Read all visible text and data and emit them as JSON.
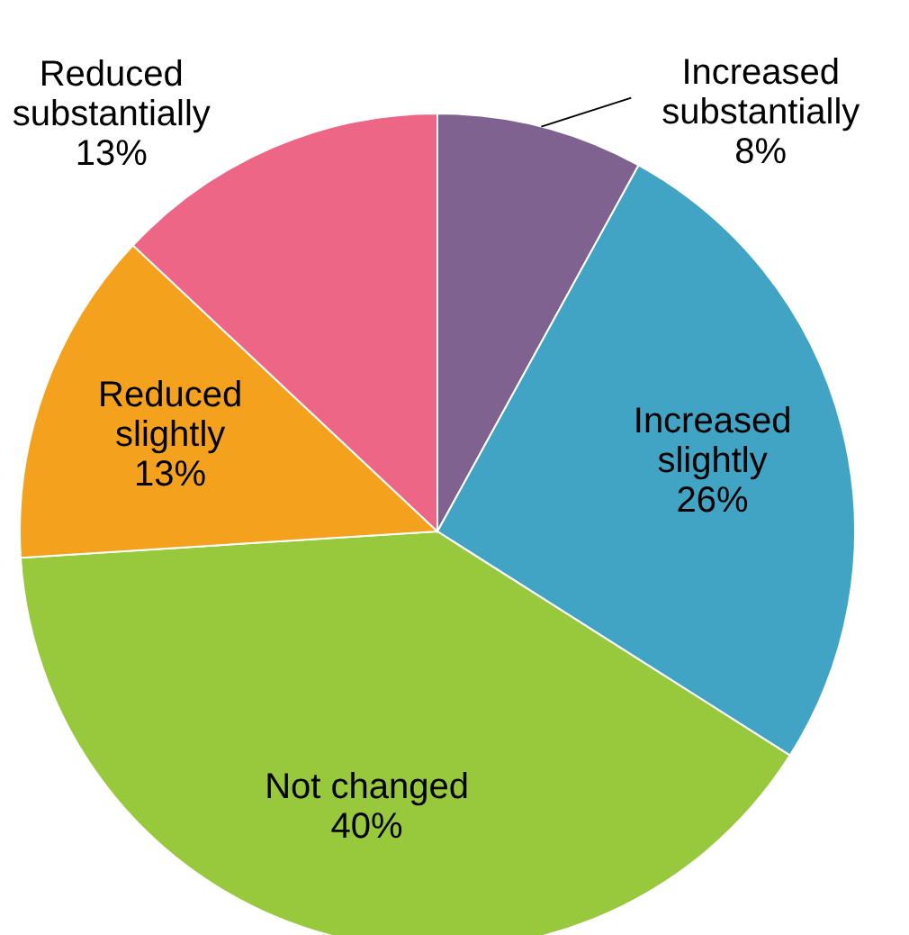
{
  "chart_data": {
    "type": "pie",
    "categories": [
      "Increased substantially",
      "Increased slightly",
      "Not changed",
      "Reduced slightly",
      "Reduced substantially"
    ],
    "values": [
      8,
      26,
      40,
      13,
      13
    ],
    "value_labels": [
      "8%",
      "26%",
      "40%",
      "13%",
      "13%"
    ],
    "colors": [
      "#7f6290",
      "#41a4c4",
      "#98c93c",
      "#f4a21d",
      "#ee6685"
    ]
  }
}
